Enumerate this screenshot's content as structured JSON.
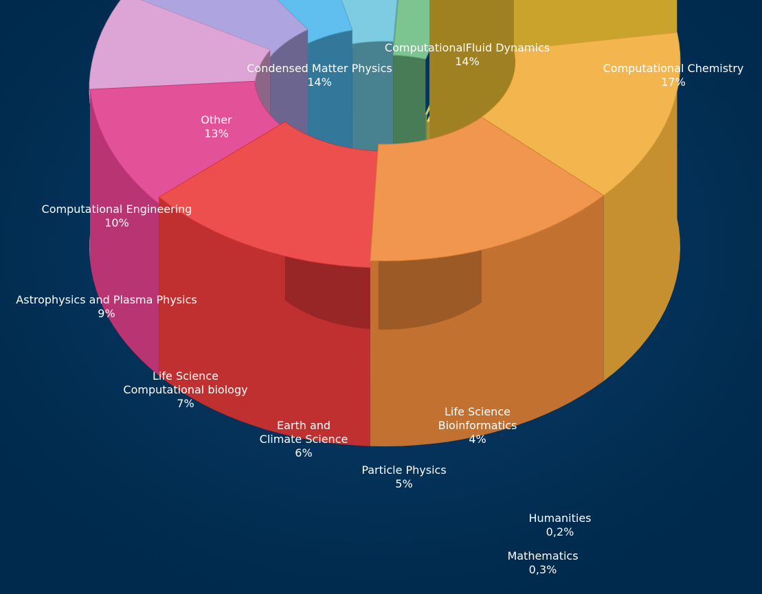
{
  "chart_data": {
    "type": "pie",
    "style": "3d-donut",
    "unit": "%",
    "background": "#002a4d",
    "slices": [
      {
        "label_lines": [
          "Computational Chemistry"
        ],
        "value_text": "17%",
        "value": 17,
        "color": "#f5c735"
      },
      {
        "label_lines": [
          "ComputationalFluid Dynamics"
        ],
        "value_text": "14%",
        "value": 14,
        "color": "#f2ae3a"
      },
      {
        "label_lines": [
          "Condensed Matter Physics"
        ],
        "value_text": "14%",
        "value": 14,
        "color": "#ee8a3b"
      },
      {
        "label_lines": [
          "Other"
        ],
        "value_text": "13%",
        "value": 13,
        "color": "#ea3b3a"
      },
      {
        "label_lines": [
          "Computational Engineering"
        ],
        "value_text": "10%",
        "value": 10,
        "color": "#e03f8c"
      },
      {
        "label_lines": [
          "Astrophysics and Plasma Physics"
        ],
        "value_text": "9%",
        "value": 9,
        "color": "#d99bd0"
      },
      {
        "label_lines": [
          "Life Science",
          "Computational biology"
        ],
        "value_text": "7%",
        "value": 7,
        "color": "#a59bdc"
      },
      {
        "label_lines": [
          "Earth and",
          "Climate Science"
        ],
        "value_text": "6%",
        "value": 6,
        "color": "#4fb8ee"
      },
      {
        "label_lines": [
          "Particle Physics"
        ],
        "value_text": "5%",
        "value": 5,
        "color": "#6ec6de"
      },
      {
        "label_lines": [
          "Life Science",
          "Bioinformatics"
        ],
        "value_text": "4%",
        "value": 4,
        "color": "#6fbe84"
      },
      {
        "label_lines": [
          "Humanities"
        ],
        "value_text": "0,2%",
        "value": 0.2,
        "color": "#c9cf66"
      },
      {
        "label_lines": [
          "Mathematics"
        ],
        "value_text": "0,3%",
        "value": 0.3,
        "color": "#f2e35a"
      }
    ]
  }
}
